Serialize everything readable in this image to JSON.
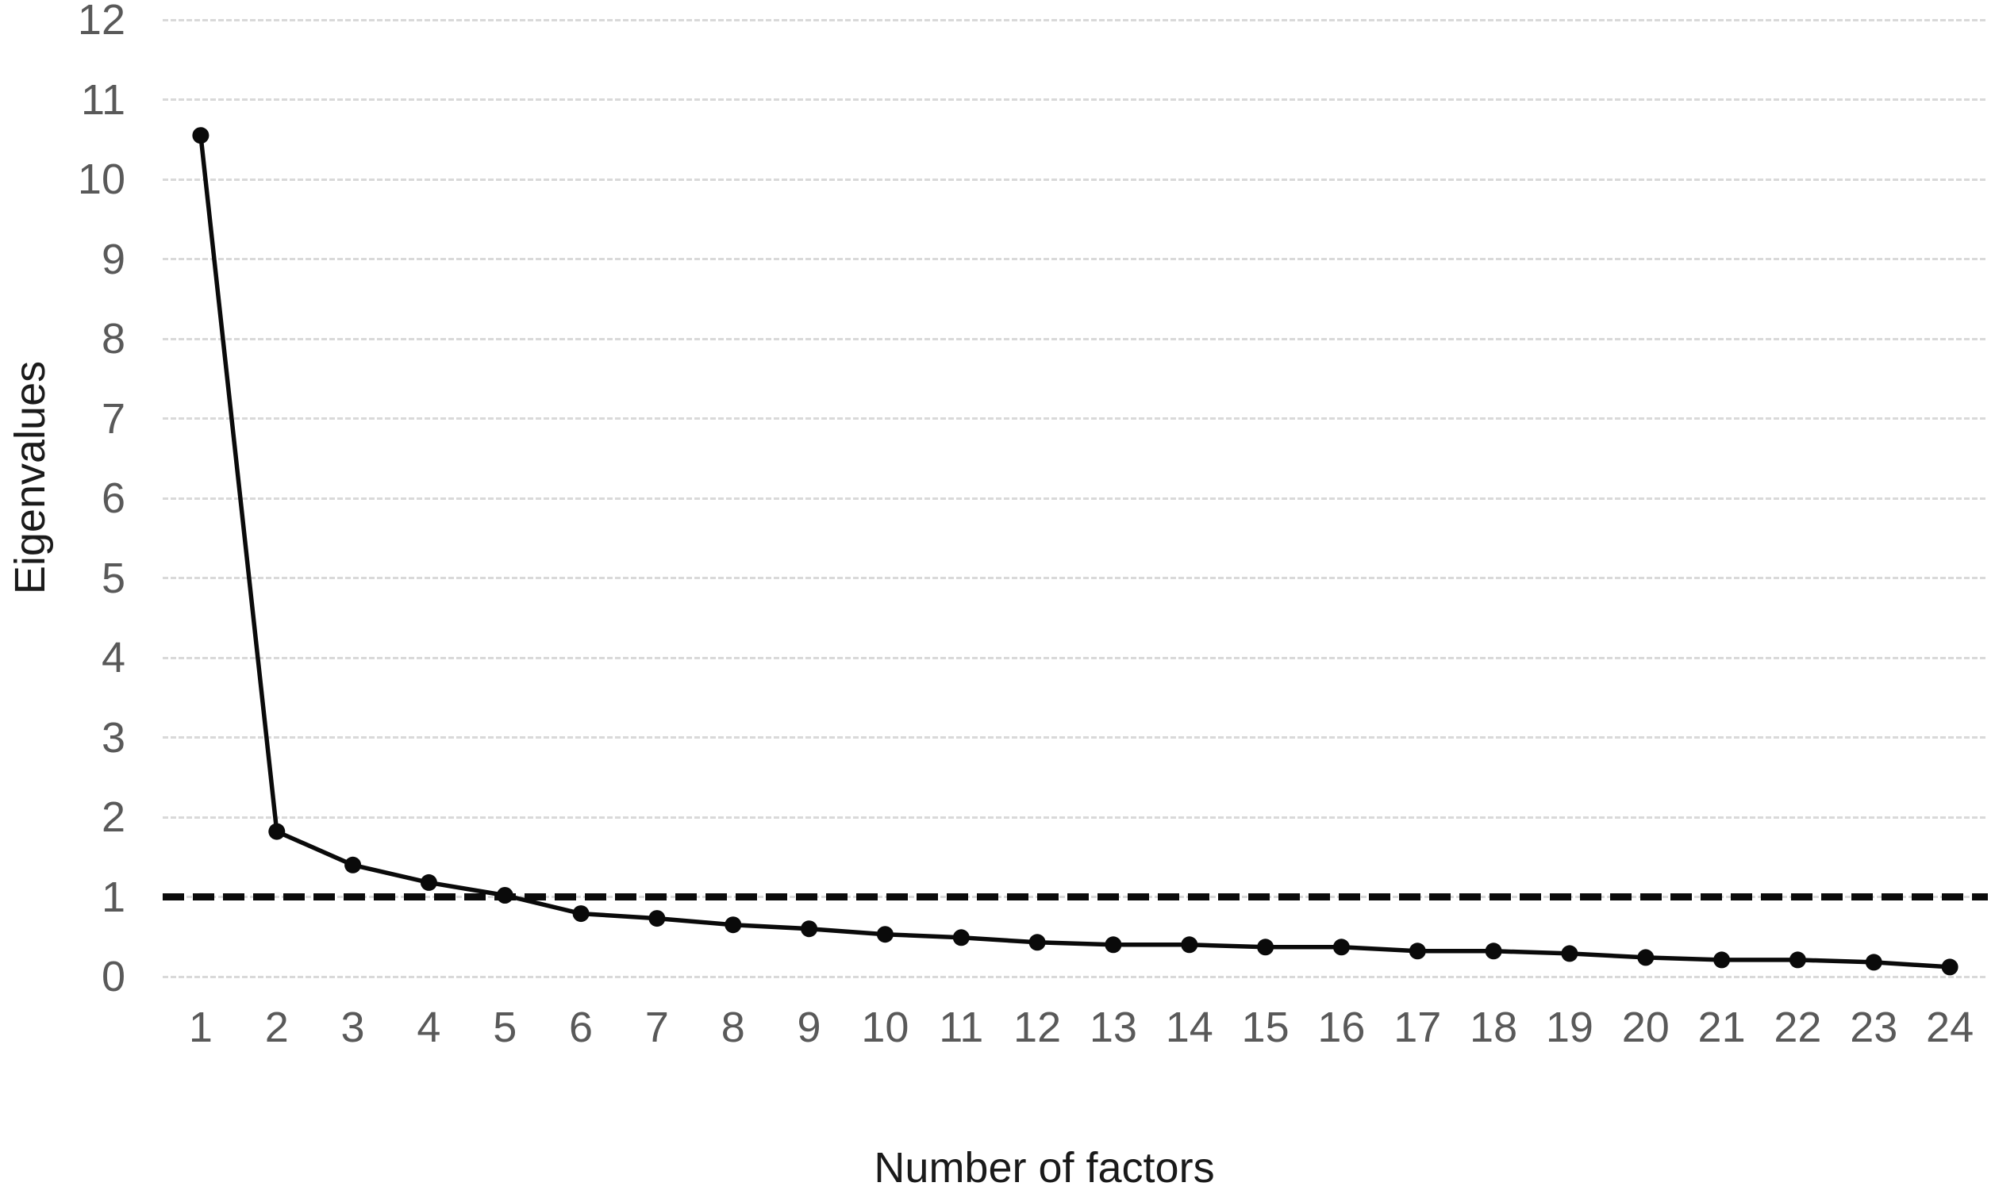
{
  "chart_data": {
    "type": "line",
    "title": "",
    "ylabel": "Eigenvalues",
    "xlabel": "Number of factors",
    "x": [
      1,
      2,
      3,
      4,
      5,
      6,
      7,
      8,
      9,
      10,
      11,
      12,
      13,
      14,
      15,
      16,
      17,
      18,
      19,
      20,
      21,
      22,
      23,
      24
    ],
    "x_tick_labels": [
      "1",
      "2",
      "3",
      "4",
      "5",
      "6",
      "7",
      "8",
      "9",
      "10",
      "11",
      "12",
      "13",
      "14",
      "15",
      "16",
      "17",
      "18",
      "19",
      "20",
      "21",
      "22",
      "23",
      "24"
    ],
    "y_tick_labels": [
      "0",
      "1",
      "2",
      "3",
      "4",
      "5",
      "6",
      "7",
      "8",
      "9",
      "10",
      "11",
      "12"
    ],
    "ylim": [
      0,
      12
    ],
    "ytick_step": 1,
    "grid": "horizontal dotted gridlines",
    "legend": "none",
    "series": [
      {
        "name": "Eigenvalues",
        "marker": "filled-circle",
        "color": "#0a0a0a",
        "values": [
          10.55,
          1.82,
          1.4,
          1.18,
          1.02,
          0.79,
          0.73,
          0.65,
          0.6,
          0.53,
          0.49,
          0.43,
          0.4,
          0.4,
          0.37,
          0.37,
          0.32,
          0.32,
          0.29,
          0.24,
          0.21,
          0.21,
          0.18,
          0.12
        ]
      }
    ],
    "reference_line": {
      "value": 1,
      "style": "dashed",
      "color": "#0b0b0b"
    },
    "colors": {
      "background": "#ffffff",
      "gridline": "#d9d9d9",
      "tick_label": "#595959",
      "axis_title": "#1a1a1a",
      "series": "#0a0a0a"
    }
  }
}
